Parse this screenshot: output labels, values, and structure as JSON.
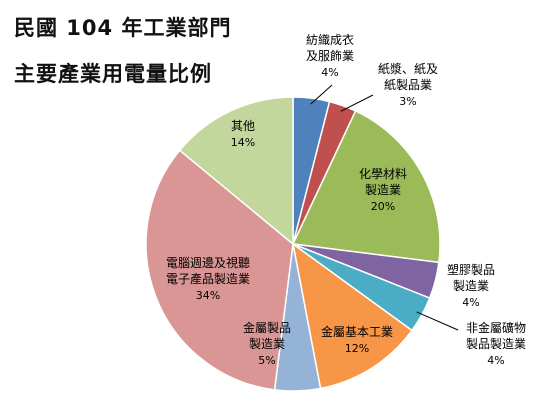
{
  "title_line1": "民國 104 年工業部門",
  "title_line2": "主要產業用電量比例",
  "chart_data": {
    "type": "pie",
    "start_angle_deg": 0,
    "direction": "clockwise",
    "slices": [
      {
        "label": [
          "紡織成衣",
          "及服飾業"
        ],
        "percent_label": "4%",
        "value": 4,
        "color": "#4f81bd"
      },
      {
        "label": [
          "紙漿、紙及",
          "紙製品業"
        ],
        "percent_label": "3%",
        "value": 3,
        "color": "#c0504d"
      },
      {
        "label": [
          "化學材料",
          "製造業"
        ],
        "percent_label": "20%",
        "value": 20,
        "color": "#9bbb59"
      },
      {
        "label": [
          "塑膠製品",
          "製造業"
        ],
        "percent_label": "4%",
        "value": 4,
        "color": "#8064a2"
      },
      {
        "label": [
          "非金屬礦物",
          "製品製造業"
        ],
        "percent_label": "4%",
        "value": 4,
        "color": "#4bacc6"
      },
      {
        "label": [
          "金屬基本工業"
        ],
        "percent_label": "12%",
        "value": 12,
        "color": "#f79646"
      },
      {
        "label": [
          "金屬製品",
          "製造業"
        ],
        "percent_label": "5%",
        "value": 5,
        "color": "#95b3d7"
      },
      {
        "label": [
          "電腦週邊及視聽",
          "電子產品製造業"
        ],
        "percent_label": "34%",
        "value": 34,
        "color": "#d99694"
      },
      {
        "label": [
          "其他"
        ],
        "percent_label": "14%",
        "value": 14,
        "color": "#c3d69b"
      }
    ]
  }
}
